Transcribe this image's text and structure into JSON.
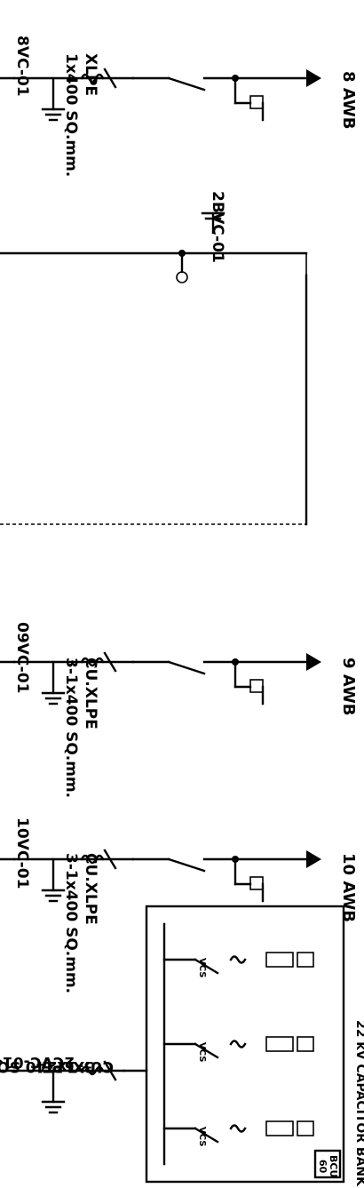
{
  "feeders": [
    {
      "cable_id": "2CVC-01",
      "cable_size": "3-1x240 SQ.mm.",
      "cable_type": "CU.XLPE",
      "breaker_tag": ""
    },
    {
      "cable_id": "10VC-01",
      "cable_size": "3-1x400 SQ.mm.",
      "cable_type": "CU.XLPE",
      "breaker_tag": "10 AWB"
    },
    {
      "cable_id": "09VC-01",
      "cable_size": "3-1x400 SQ.mm.",
      "cable_type": "CU.XLPE",
      "breaker_tag": "9 AWB"
    },
    {
      "cable_id": "2BVC-01",
      "cable_size": "",
      "cable_type": "",
      "breaker_tag": ""
    },
    {
      "cable_id": "8VC-01",
      "cable_size": "1x400 SQ.mm.",
      "cable_type": "XLPE",
      "breaker_tag": "8 AWB"
    }
  ],
  "capacitor_bank": {
    "title": "22 kV CAPACITOR BANK",
    "switch_label": "VCS",
    "relay_label": "BCU",
    "relay_number": "60"
  },
  "colors": {
    "line": "#000000",
    "background": "#ffffff"
  }
}
